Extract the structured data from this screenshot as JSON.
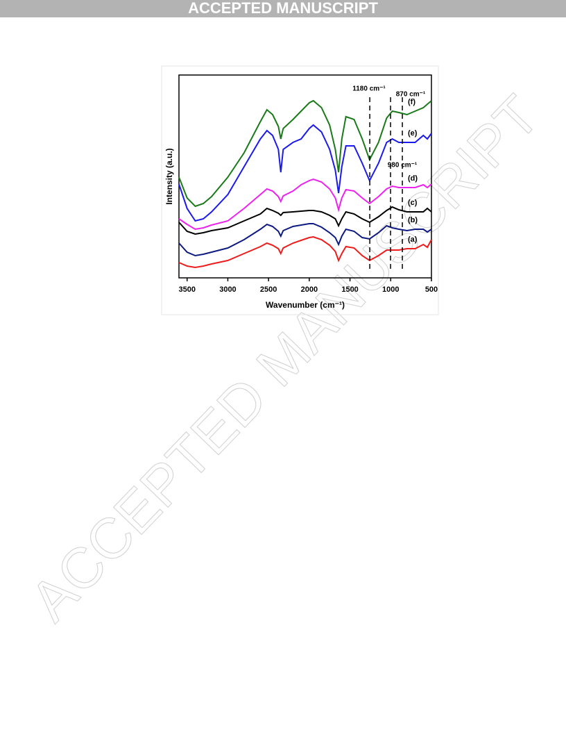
{
  "header": "ACCEPTED MANUSCRIPT",
  "watermark": "ACCEPTED MANUSCRIPT",
  "chart_data": {
    "type": "line",
    "xlabel": "Wavenumber (cm⁻¹)",
    "ylabel": "Intensity (a.u.)",
    "xlim": [
      3600,
      500
    ],
    "xticks": [
      3500,
      3000,
      2500,
      2000,
      1500,
      1000,
      500
    ],
    "ylim": [
      0,
      292
    ],
    "x": [
      3600,
      3500,
      3400,
      3300,
      3200,
      3000,
      2800,
      2600,
      2520,
      2450,
      2380,
      2350,
      2320,
      2200,
      2100,
      2000,
      1950,
      1850,
      1750,
      1680,
      1640,
      1600,
      1550,
      1450,
      1350,
      1260,
      1150,
      1050,
      980,
      900,
      800,
      700,
      600,
      550,
      500
    ],
    "series": [
      {
        "name": "(a)",
        "color": "#ee1c1c",
        "values": [
          22,
          17,
          15,
          17,
          20,
          25,
          35,
          45,
          50,
          47,
          42,
          35,
          43,
          50,
          54,
          58,
          59,
          55,
          47,
          38,
          25,
          35,
          45,
          43,
          32,
          25,
          32,
          40,
          40,
          40,
          42,
          42,
          48,
          44,
          55
        ]
      },
      {
        "name": "(b)",
        "color": "#0d1a80",
        "values": [
          50,
          37,
          32,
          34,
          37,
          43,
          55,
          70,
          77,
          74,
          67,
          60,
          68,
          74,
          76,
          78,
          78,
          73,
          65,
          58,
          48,
          60,
          70,
          67,
          58,
          56,
          65,
          75,
          72,
          70,
          68,
          70,
          70,
          66,
          70
        ]
      },
      {
        "name": "(c)",
        "color": "#000000",
        "values": [
          80,
          67,
          63,
          65,
          68,
          72,
          82,
          92,
          100,
          97,
          93,
          90,
          94,
          95,
          96,
          97,
          97,
          95,
          90,
          85,
          75,
          85,
          95,
          92,
          85,
          80,
          88,
          97,
          102,
          98,
          95,
          95,
          95,
          100,
          95
        ]
      },
      {
        "name": "(d)",
        "color": "#ee22ee",
        "values": [
          85,
          77,
          70,
          72,
          76,
          82,
          100,
          120,
          128,
          125,
          117,
          110,
          118,
          125,
          134,
          140,
          142,
          138,
          128,
          115,
          98,
          115,
          127,
          125,
          115,
          107,
          117,
          128,
          132,
          130,
          130,
          130,
          134,
          130,
          135
        ]
      },
      {
        "name": "(e)",
        "color": "#1a1aee",
        "values": [
          135,
          100,
          82,
          85,
          95,
          120,
          160,
          200,
          212,
          205,
          185,
          152,
          185,
          195,
          200,
          215,
          220,
          210,
          185,
          155,
          122,
          160,
          190,
          190,
          165,
          140,
          165,
          195,
          200,
          195,
          195,
          195,
          205,
          200,
          208
        ]
      },
      {
        "name": "(f)",
        "color": "#1a7a1a",
        "values": [
          145,
          115,
          103,
          107,
          117,
          145,
          180,
          225,
          242,
          235,
          218,
          200,
          215,
          228,
          240,
          252,
          255,
          245,
          220,
          185,
          152,
          200,
          232,
          228,
          200,
          170,
          195,
          230,
          240,
          238,
          235,
          240,
          245,
          250,
          255
        ]
      }
    ],
    "annotations": [
      {
        "x": 1257,
        "label": "1180 cm⁻¹"
      },
      {
        "x": 1002,
        "label": "980 cm⁻¹"
      },
      {
        "x": 857,
        "label": "870 cm⁻¹"
      }
    ]
  }
}
